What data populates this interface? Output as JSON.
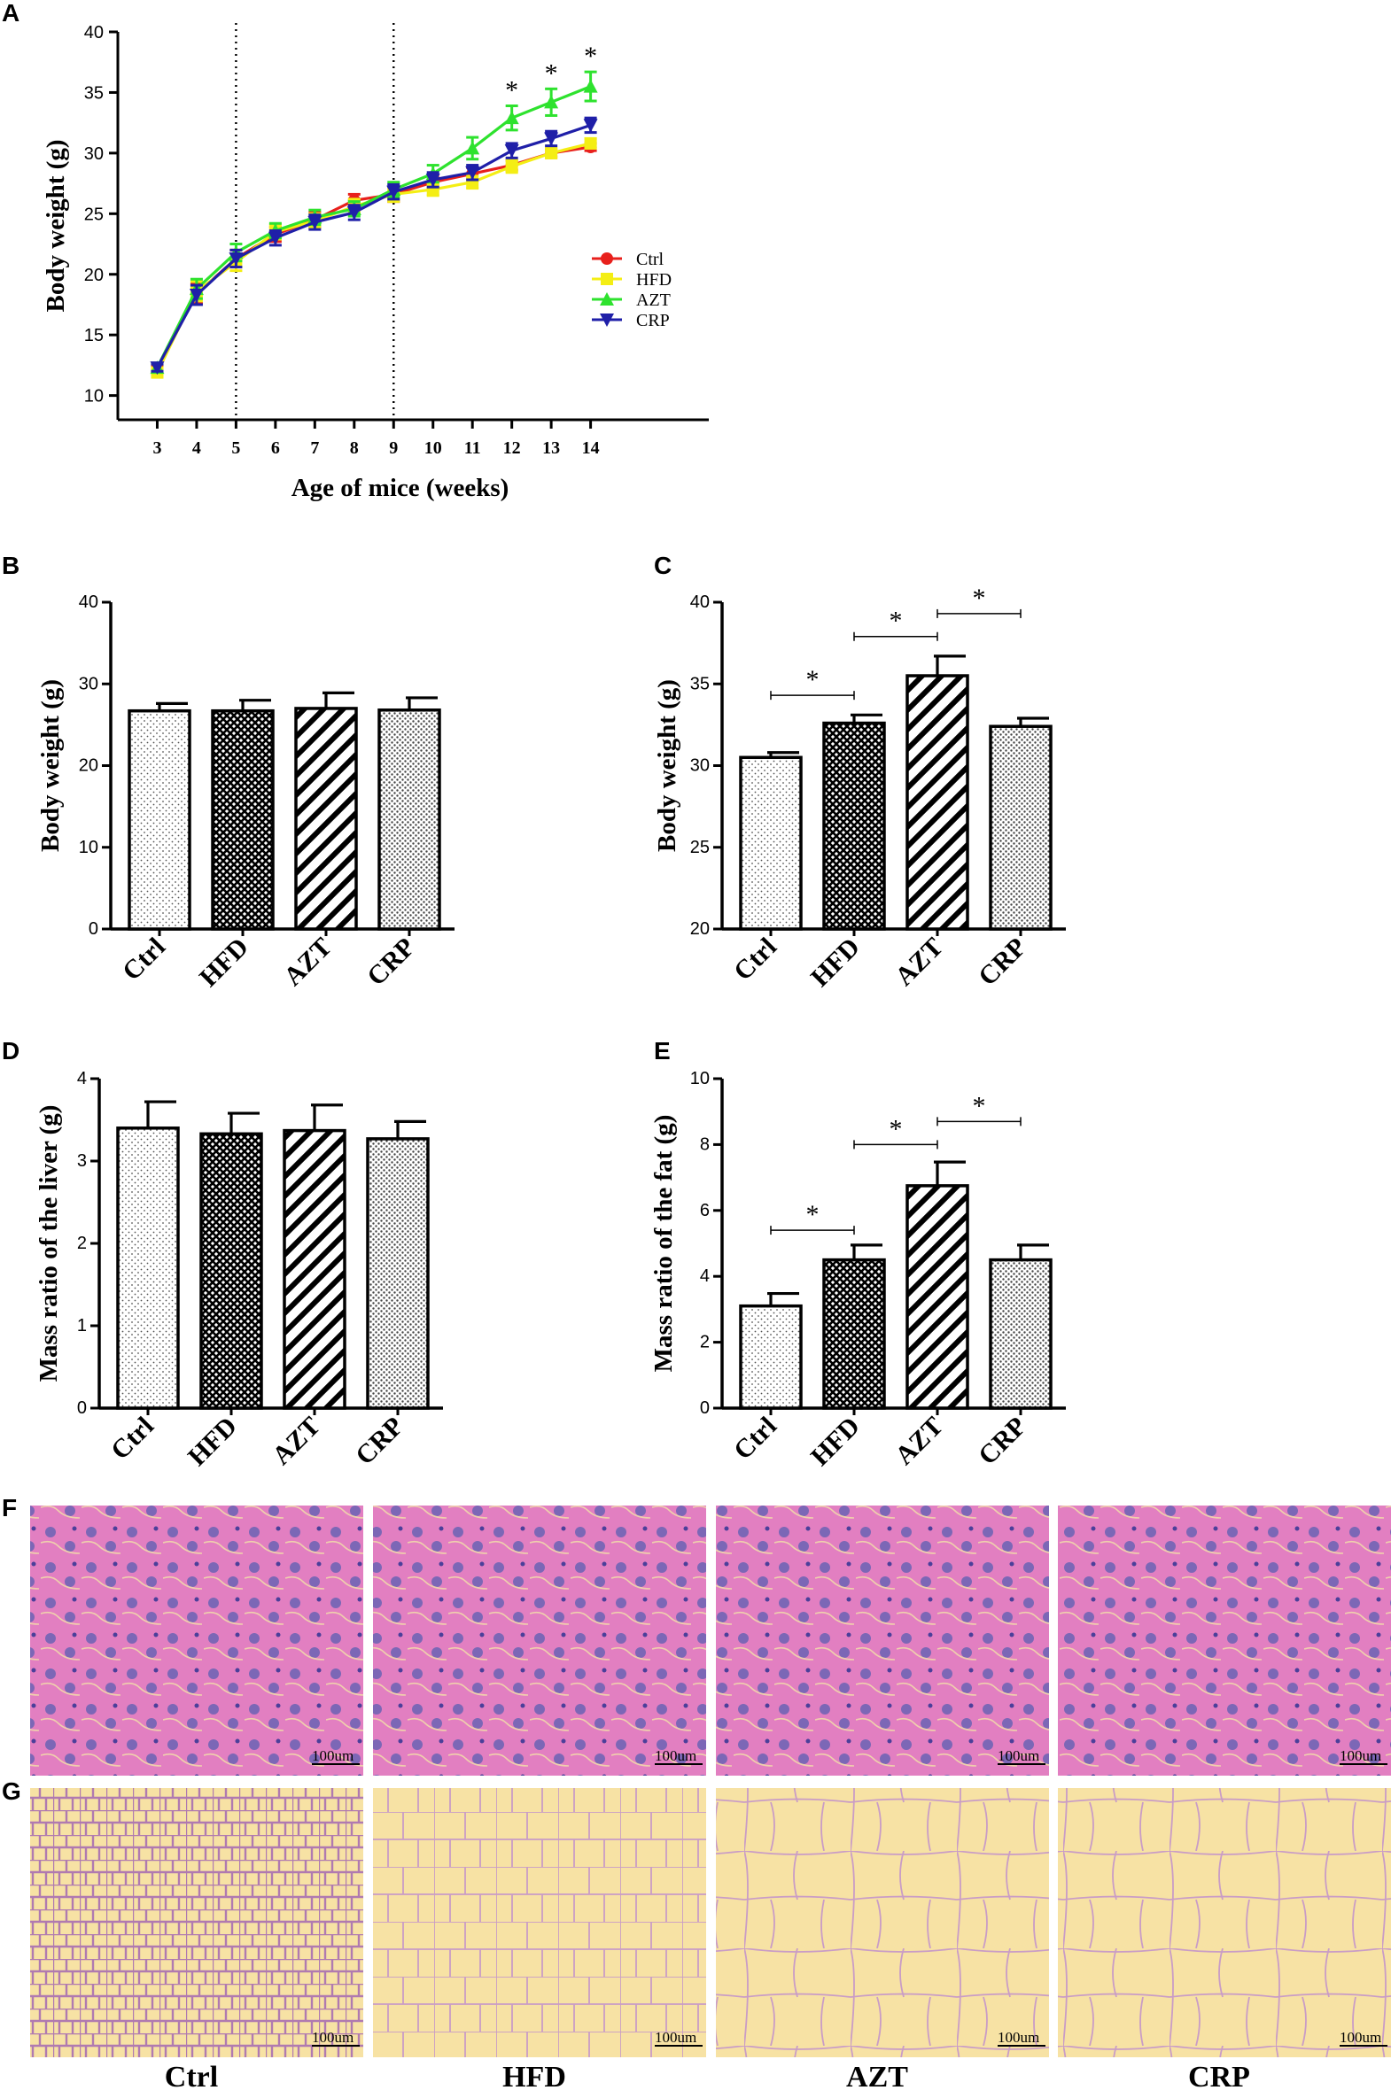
{
  "panel_labels": {
    "A": "A",
    "B": "B",
    "C": "C",
    "D": "D",
    "E": "E",
    "F": "F",
    "G": "G"
  },
  "chart_data": [
    {
      "panel": "A",
      "type": "line",
      "xlabel": "Age of mice (weeks)",
      "ylabel": "Body weight (g)",
      "x": [
        3,
        4,
        5,
        6,
        7,
        8,
        9,
        10,
        11,
        12,
        13,
        14
      ],
      "xlim": [
        2,
        17
      ],
      "ylim": [
        8,
        40
      ],
      "yticks": [
        10,
        15,
        20,
        25,
        30,
        35,
        40
      ],
      "vlines": [
        5,
        9
      ],
      "series": [
        {
          "name": "Ctrl",
          "color": "#e8201c",
          "marker": "circle",
          "values": [
            12.2,
            18.4,
            21.3,
            23.3,
            24.5,
            26.1,
            26.6,
            27.6,
            28.3,
            29.0,
            30.0,
            30.5
          ],
          "errors": [
            0.3,
            0.8,
            0.7,
            0.6,
            0.6,
            0.5,
            0.6,
            0.5,
            0.5,
            0.4,
            0.3,
            0.3
          ]
        },
        {
          "name": "HFD",
          "color": "#f4ee14",
          "marker": "square",
          "values": [
            11.9,
            18.6,
            21.0,
            23.5,
            24.4,
            25.6,
            26.6,
            27.0,
            27.6,
            28.9,
            30.0,
            30.8
          ],
          "errors": [
            0.3,
            0.8,
            0.7,
            0.6,
            0.6,
            0.6,
            0.6,
            0.5,
            0.5,
            0.5,
            0.4,
            0.4
          ]
        },
        {
          "name": "AZT",
          "color": "#2ee22e",
          "marker": "triangle",
          "values": [
            12.3,
            18.8,
            21.8,
            23.6,
            24.7,
            25.4,
            27.0,
            28.3,
            30.4,
            32.9,
            34.2,
            35.5
          ],
          "errors": [
            0.3,
            0.8,
            0.7,
            0.6,
            0.6,
            0.6,
            0.6,
            0.7,
            0.9,
            1.0,
            1.1,
            1.2
          ]
        },
        {
          "name": "CRP",
          "color": "#1f1fa8",
          "marker": "triangle-down",
          "values": [
            12.3,
            18.3,
            21.3,
            23.0,
            24.3,
            25.1,
            26.8,
            27.8,
            28.4,
            30.2,
            31.2,
            32.3
          ],
          "errors": [
            0.3,
            0.8,
            0.7,
            0.6,
            0.6,
            0.6,
            0.6,
            0.6,
            0.6,
            0.6,
            0.6,
            0.6
          ]
        }
      ],
      "significance_markers": [
        {
          "x": 12,
          "label": "*"
        },
        {
          "x": 13,
          "label": "*"
        },
        {
          "x": 14,
          "label": "*"
        }
      ],
      "legend_position": "right"
    },
    {
      "panel": "B",
      "type": "bar",
      "ylabel": "Body weight (g)",
      "categories": [
        "Ctrl",
        "HFD",
        "AZT",
        "CRP"
      ],
      "values": [
        26.7,
        26.7,
        27.0,
        26.8
      ],
      "errors": [
        0.9,
        1.3,
        1.9,
        1.5
      ],
      "ylim": [
        0,
        40
      ],
      "yticks": [
        0,
        10,
        20,
        30,
        40
      ],
      "significance": []
    },
    {
      "panel": "C",
      "type": "bar",
      "ylabel": "Body weight (g)",
      "categories": [
        "Ctrl",
        "HFD",
        "AZT",
        "CRP"
      ],
      "values": [
        30.5,
        32.6,
        35.5,
        32.4
      ],
      "errors": [
        0.3,
        0.5,
        1.2,
        0.5
      ],
      "ylim": [
        20,
        40
      ],
      "yticks": [
        20,
        25,
        30,
        35,
        40
      ],
      "significance": [
        {
          "from": 0,
          "to": 1,
          "y": 34.3,
          "label": "*"
        },
        {
          "from": 1,
          "to": 2,
          "y": 37.9,
          "label": "*"
        },
        {
          "from": 2,
          "to": 3,
          "y": 39.3,
          "label": "*"
        }
      ]
    },
    {
      "panel": "D",
      "type": "bar",
      "ylabel": "Mass ratio of the liver (g)",
      "categories": [
        "Ctrl",
        "HFD",
        "AZT",
        "CRP"
      ],
      "values": [
        3.4,
        3.33,
        3.37,
        3.27
      ],
      "errors": [
        0.32,
        0.25,
        0.31,
        0.21
      ],
      "ylim": [
        0,
        4
      ],
      "yticks": [
        0,
        1,
        2,
        3,
        4
      ],
      "significance": []
    },
    {
      "panel": "E",
      "type": "bar",
      "ylabel": "Mass ratio of the fat (g)",
      "categories": [
        "Ctrl",
        "HFD",
        "AZT",
        "CRP"
      ],
      "values": [
        3.1,
        4.5,
        6.75,
        4.5
      ],
      "errors": [
        0.38,
        0.45,
        0.72,
        0.45
      ],
      "ylim": [
        0,
        10
      ],
      "yticks": [
        0,
        2,
        4,
        6,
        8,
        10
      ],
      "significance": [
        {
          "from": 0,
          "to": 1,
          "y": 5.4,
          "label": "*"
        },
        {
          "from": 1,
          "to": 2,
          "y": 8.0,
          "label": "*"
        },
        {
          "from": 2,
          "to": 3,
          "y": 8.7,
          "label": "*"
        }
      ]
    }
  ],
  "micrographs": {
    "groups": [
      "Ctrl",
      "HFD",
      "AZT",
      "CRP"
    ],
    "scale_bar_label": "100um",
    "liver_colors": {
      "background": "#e27fc1",
      "nucleus": "#6a63b4",
      "sinusoid": "#f3e3a8"
    },
    "fat_colors": {
      "background": "#f7e2a4",
      "membrane": "#b07ab0"
    }
  }
}
